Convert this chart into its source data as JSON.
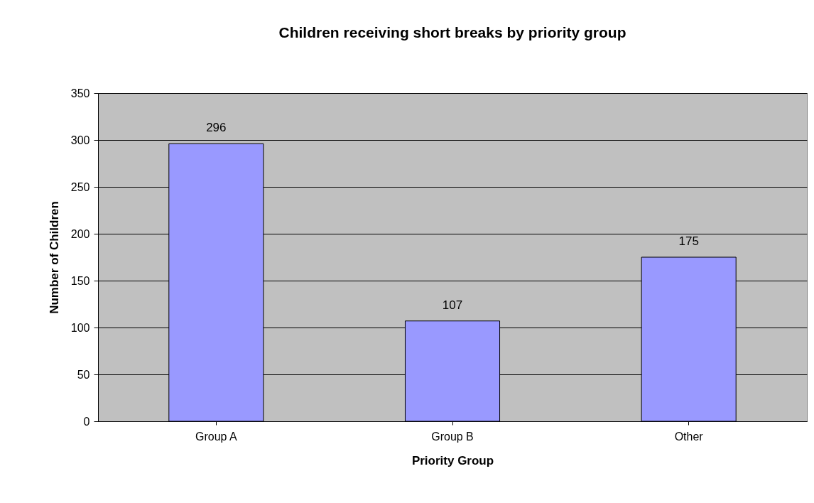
{
  "chart_data": {
    "type": "bar",
    "title": "Children receiving short breaks by priority group",
    "xlabel": "Priority Group",
    "ylabel": "Number of Children",
    "categories": [
      "Group A",
      "Group B",
      "Other"
    ],
    "values": [
      296,
      107,
      175
    ],
    "color": "#9999ff",
    "ylim": [
      0,
      350
    ],
    "yticks": [
      0,
      50,
      100,
      150,
      200,
      250,
      300,
      350
    ],
    "grid": "y",
    "data_labels": true
  }
}
